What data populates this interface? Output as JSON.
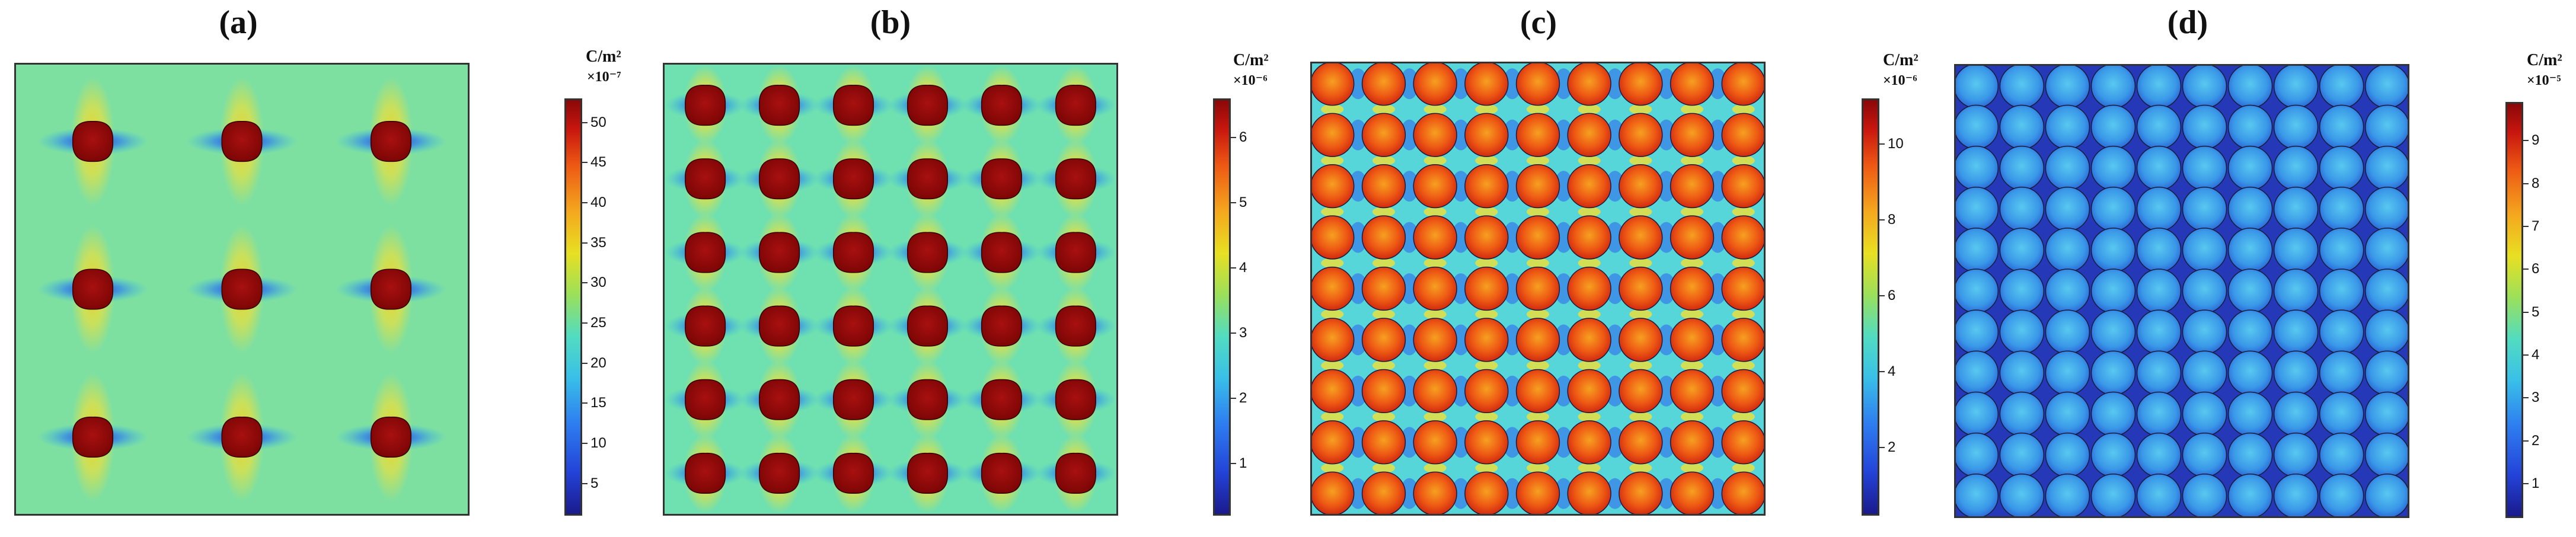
{
  "panels": [
    {
      "label": "(a)",
      "unit": "C/m²",
      "scale": "×10⁻⁷",
      "ticks": [
        "5",
        "10",
        "15",
        "20",
        "25",
        "30",
        "35",
        "40",
        "45",
        "50"
      ],
      "tick_values": [
        5,
        10,
        15,
        20,
        25,
        30,
        35,
        40,
        45,
        50
      ],
      "range": [
        1,
        53
      ],
      "grid": [
        3,
        3
      ],
      "background": "#7ee0a0",
      "particle_color": "#9c0e0e"
    },
    {
      "label": "(b)",
      "unit": "C/m²",
      "scale": "×10⁻⁶",
      "ticks": [
        "1",
        "2",
        "3",
        "4",
        "5",
        "6"
      ],
      "tick_values": [
        1,
        2,
        3,
        4,
        5,
        6
      ],
      "range": [
        0.2,
        6.6
      ],
      "grid": [
        6,
        6
      ],
      "background": "#6fe0b0",
      "particle_color": "#9c0e0e"
    },
    {
      "label": "(c)",
      "unit": "C/m²",
      "scale": "×10⁻⁶",
      "ticks": [
        "2",
        "4",
        "6",
        "8",
        "10"
      ],
      "tick_values": [
        2,
        4,
        6,
        8,
        10
      ],
      "range": [
        0.2,
        11.2
      ],
      "grid": [
        9,
        9
      ],
      "background": "#56d6d8",
      "particle_color": "#f05a18"
    },
    {
      "label": "(d)",
      "unit": "C/m²",
      "scale": "×10⁻⁵",
      "ticks": [
        "1",
        "2",
        "3",
        "4",
        "5",
        "6",
        "7",
        "8",
        "9"
      ],
      "tick_values": [
        1,
        2,
        3,
        4,
        5,
        6,
        7,
        8,
        9
      ],
      "range": [
        0.2,
        9.9
      ],
      "grid": [
        10,
        11
      ],
      "background": "#2438b8",
      "particle_color": "#3aa6ec"
    }
  ]
}
